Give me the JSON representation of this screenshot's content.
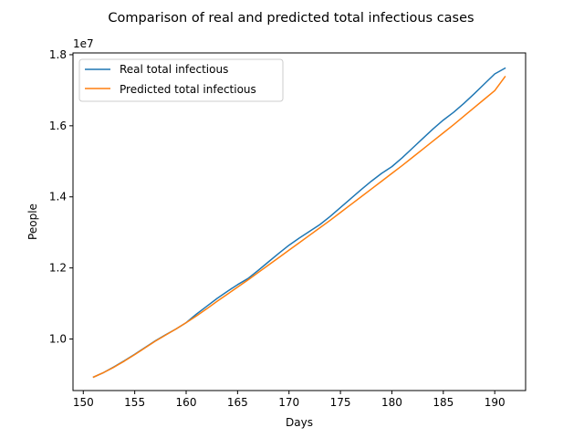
{
  "chart_data": {
    "type": "line",
    "title": "Comparison of real and predicted total infectious cases",
    "xlabel": "Days",
    "ylabel": "People",
    "y_offset_label": "1e7",
    "y_scale_factor": 10000000,
    "xlim": [
      149.0,
      193.0
    ],
    "ylim": [
      8.55,
      18.05
    ],
    "xticks": [
      150,
      155,
      160,
      165,
      170,
      175,
      180,
      185,
      190
    ],
    "yticks": [
      1.0,
      1.2,
      1.4,
      1.6,
      1.8
    ],
    "ytick_labels": [
      "1.0",
      "1.2",
      "1.4",
      "1.6",
      "1.8"
    ],
    "grid": false,
    "legend_position": "top-left",
    "x": [
      151,
      152,
      153,
      154,
      155,
      156,
      157,
      158,
      159,
      160,
      161,
      162,
      163,
      164,
      165,
      166,
      167,
      168,
      169,
      170,
      171,
      172,
      173,
      174,
      175,
      176,
      177,
      178,
      179,
      180,
      181,
      182,
      183,
      184,
      185,
      186,
      187,
      188,
      189,
      190,
      191
    ],
    "series": [
      {
        "name": "Real total infectious",
        "color": "#1f77b4",
        "values": [
          8.93,
          9.06,
          9.22,
          9.39,
          9.57,
          9.76,
          9.95,
          10.12,
          10.28,
          10.46,
          10.7,
          10.92,
          11.14,
          11.34,
          11.53,
          11.7,
          11.93,
          12.17,
          12.41,
          12.64,
          12.84,
          13.03,
          13.22,
          13.45,
          13.7,
          13.95,
          14.2,
          14.44,
          14.66,
          14.85,
          15.1,
          15.37,
          15.64,
          15.91,
          16.16,
          16.38,
          16.63,
          16.9,
          17.18,
          17.46,
          17.62
        ]
      },
      {
        "name": "Predicted total infectious",
        "color": "#ff7f0e",
        "values": [
          8.93,
          9.06,
          9.21,
          9.38,
          9.56,
          9.75,
          9.94,
          10.11,
          10.28,
          10.46,
          10.65,
          10.85,
          11.06,
          11.26,
          11.46,
          11.66,
          11.87,
          12.08,
          12.29,
          12.5,
          12.71,
          12.92,
          13.13,
          13.34,
          13.56,
          13.78,
          14.0,
          14.22,
          14.44,
          14.66,
          14.88,
          15.11,
          15.34,
          15.57,
          15.8,
          16.03,
          16.27,
          16.51,
          16.75,
          16.99,
          17.38
        ]
      }
    ]
  }
}
